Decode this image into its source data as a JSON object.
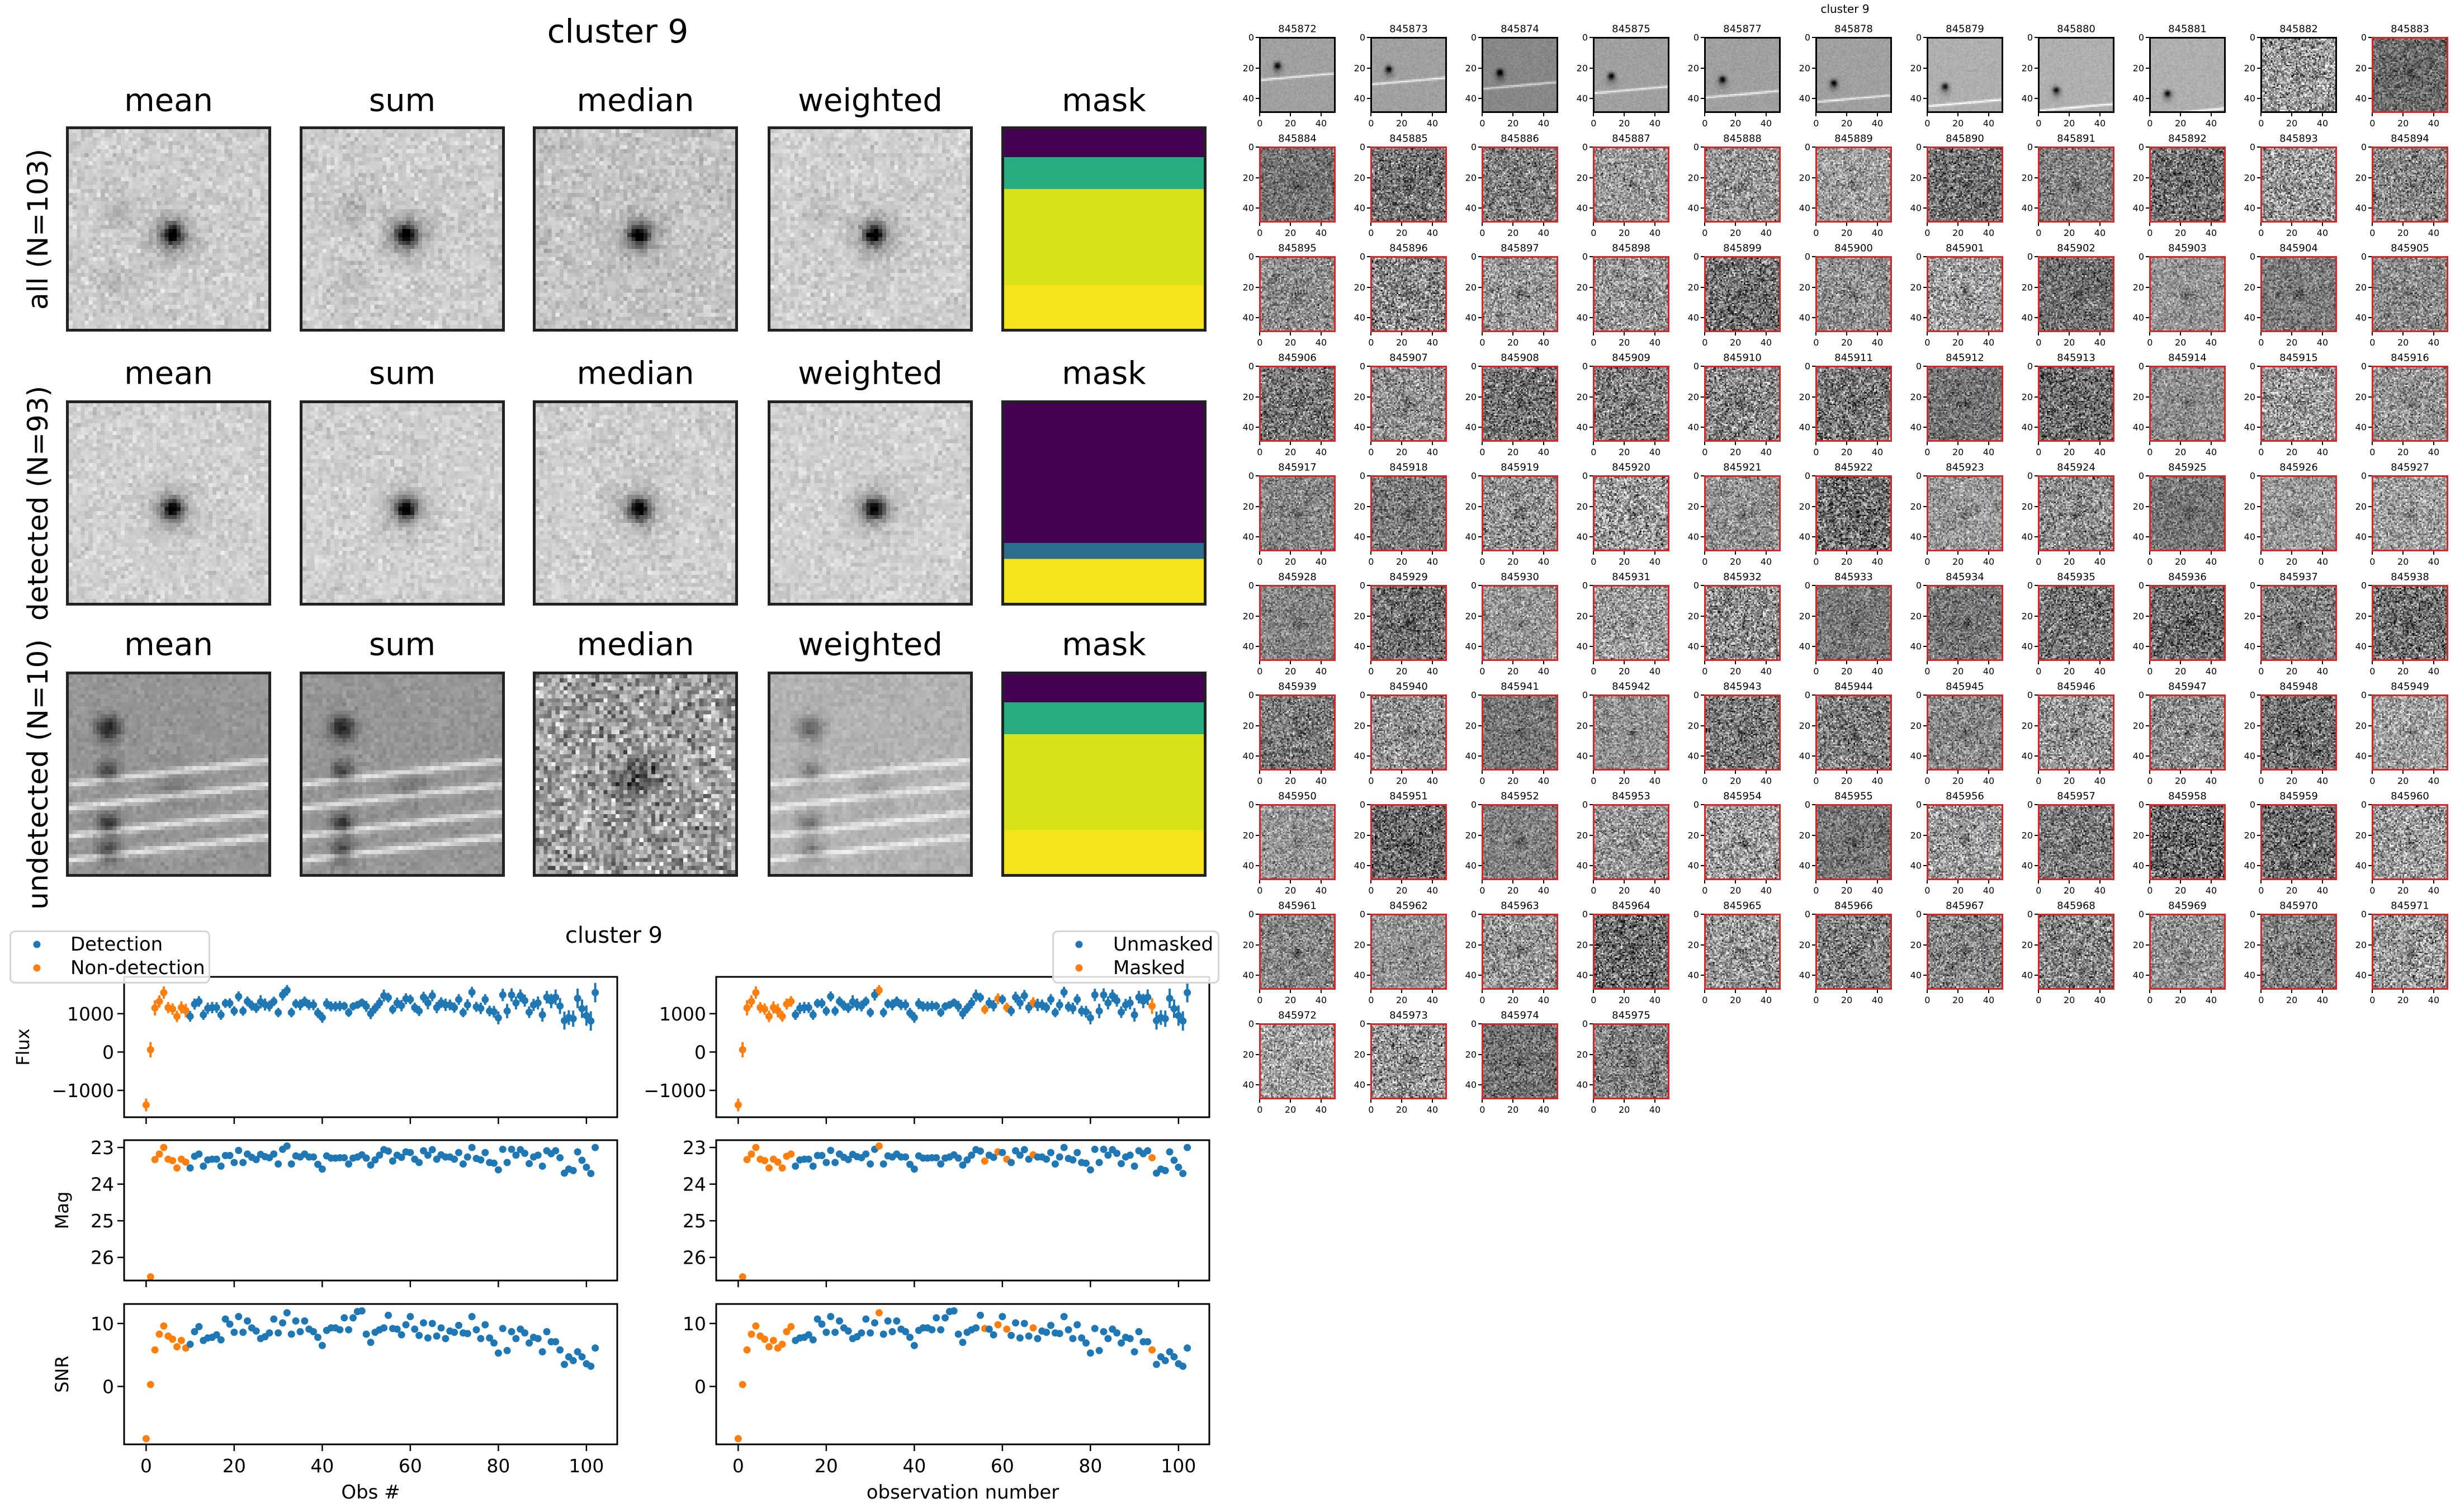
{
  "stamps": {
    "title": "cluster 9",
    "columns": [
      "mean",
      "sum",
      "median",
      "weighted",
      "mask"
    ],
    "rows": [
      "all (N=103)",
      "detected (N=93)",
      "undetected (N=10)"
    ],
    "mask_colors": {
      "purple": "#440154",
      "blue": "#2c6e8e",
      "teal": "#27ad81",
      "yellow_green": "#d8e219",
      "yellow": "#f4e41c"
    }
  },
  "chart_data": {
    "type": "scatter",
    "title": "cluster 9",
    "obs": [
      0,
      1,
      2,
      3,
      4,
      5,
      6,
      7,
      8,
      9,
      10,
      11,
      12,
      13,
      14,
      15,
      16,
      17,
      18,
      19,
      20,
      21,
      22,
      23,
      24,
      25,
      26,
      27,
      28,
      29,
      30,
      31,
      32,
      33,
      34,
      35,
      36,
      37,
      38,
      39,
      40,
      41,
      42,
      43,
      44,
      45,
      46,
      47,
      48,
      49,
      50,
      51,
      52,
      53,
      54,
      55,
      56,
      57,
      58,
      59,
      60,
      61,
      62,
      63,
      64,
      65,
      66,
      67,
      68,
      69,
      70,
      71,
      72,
      73,
      74,
      75,
      76,
      77,
      78,
      79,
      80,
      81,
      82,
      83,
      84,
      85,
      86,
      87,
      88,
      89,
      90,
      91,
      92,
      93,
      94,
      95,
      96,
      97,
      98,
      99,
      100,
      101,
      102
    ],
    "flux": [
      -1380,
      60,
      1150,
      1320,
      1550,
      1160,
      1120,
      930,
      1160,
      1080,
      930,
      1250,
      1320,
      970,
      1140,
      1160,
      1160,
      970,
      1270,
      1270,
      1070,
      1450,
      1070,
      1320,
      1210,
      1150,
      1310,
      1240,
      1200,
      1320,
      1030,
      1490,
      1610,
      1030,
      1260,
      1230,
      1320,
      1230,
      1230,
      1020,
      900,
      1260,
      1190,
      1190,
      1200,
      1200,
      1030,
      1190,
      1230,
      1290,
      1190,
      1000,
      1140,
      1280,
      1470,
      1420,
      1110,
      1280,
      1210,
      1390,
      1370,
      1160,
      1070,
      1430,
      1280,
      1470,
      1160,
      1290,
      1230,
      1230,
      1160,
      1370,
      1030,
      1230,
      1560,
      1180,
      1140,
      1370,
      1070,
      1050,
      890,
      1490,
      1070,
      1490,
      1280,
      1470,
      1340,
      1040,
      1230,
      1280,
      970,
      1430,
      1330,
      1430,
      1200,
      820,
      900,
      870,
      1400,
      1130,
      950,
      810,
      1550
    ],
    "mag": [
      null,
      26.53,
      23.33,
      23.18,
      23.0,
      23.32,
      23.36,
      23.56,
      23.32,
      23.4,
      23.56,
      23.24,
      23.18,
      23.51,
      23.34,
      23.32,
      23.32,
      23.51,
      23.22,
      23.22,
      23.41,
      23.08,
      23.41,
      23.18,
      23.27,
      23.33,
      23.19,
      23.25,
      23.28,
      23.18,
      23.45,
      23.05,
      22.96,
      23.45,
      23.23,
      23.26,
      23.18,
      23.26,
      23.26,
      23.46,
      23.59,
      23.23,
      23.29,
      23.29,
      23.28,
      23.28,
      23.45,
      23.29,
      23.26,
      23.2,
      23.29,
      23.48,
      23.34,
      23.21,
      23.06,
      23.1,
      23.37,
      23.21,
      23.27,
      23.12,
      23.14,
      23.32,
      23.41,
      23.09,
      23.21,
      23.06,
      23.32,
      23.2,
      23.26,
      23.26,
      23.32,
      23.14,
      23.45,
      23.26,
      23.0,
      23.3,
      23.34,
      23.14,
      23.41,
      23.43,
      23.61,
      23.05,
      23.41,
      23.05,
      23.21,
      23.06,
      23.16,
      23.44,
      23.26,
      23.21,
      23.51,
      23.09,
      23.17,
      23.09,
      23.28,
      23.7,
      23.59,
      23.63,
      23.12,
      23.35,
      23.54,
      23.71,
      23.0
    ],
    "snr": [
      -8.3,
      0.3,
      5.8,
      8.3,
      9.6,
      8.0,
      7.5,
      6.3,
      7.3,
      6.1,
      6.7,
      8.7,
      9.5,
      7.3,
      7.7,
      7.8,
      8.2,
      7.4,
      10.7,
      9.9,
      8.6,
      11.1,
      8.6,
      10.4,
      9.3,
      8.8,
      7.6,
      7.9,
      8.5,
      10.7,
      8.5,
      10.1,
      11.7,
      8.3,
      10.4,
      8.7,
      10.4,
      9.1,
      8.7,
      7.8,
      6.5,
      8.9,
      9.3,
      9.3,
      9.0,
      10.9,
      9.0,
      10.9,
      11.9,
      12.0,
      8.3,
      7.0,
      8.6,
      9.0,
      9.3,
      11.3,
      9.2,
      9.1,
      8.2,
      9.8,
      11.1,
      9.1,
      8.1,
      10.1,
      7.7,
      10.0,
      8.0,
      9.3,
      7.6,
      8.8,
      8.6,
      9.7,
      8.5,
      8.4,
      11.1,
      9.0,
      7.6,
      9.8,
      7.7,
      6.9,
      5.3,
      9.2,
      5.7,
      8.7,
      7.6,
      9.1,
      8.5,
      6.9,
      7.8,
      7.6,
      5.5,
      8.7,
      7.1,
      7.1,
      5.8,
      3.5,
      4.7,
      4.1,
      5.5,
      4.7,
      3.6,
      3.2,
      6.1
    ],
    "xlim": [
      -5,
      107
    ],
    "xticks": [
      0,
      20,
      40,
      60,
      80,
      100
    ],
    "rows": [
      {
        "ylabel": "Flux",
        "ylim": [
          -1700,
          1960
        ],
        "yticks": [
          -1000,
          0,
          1000
        ],
        "yticklabels": [
          "−1000",
          "0",
          "1000"
        ],
        "errorbars": true
      },
      {
        "ylabel": "Mag",
        "ylim": [
          26.63,
          22.8
        ],
        "inverted": true,
        "yticks": [
          23,
          24,
          25,
          26
        ],
        "yticklabels": [
          "23",
          "24",
          "25",
          "26"
        ],
        "errorbars": false
      },
      {
        "ylabel": "SNR",
        "ylim": [
          -9.2,
          13.1
        ],
        "yticks": [
          0,
          10
        ],
        "yticklabels": [
          "0",
          "10"
        ],
        "errorbars": false
      }
    ],
    "panels": [
      {
        "xlabel": "Obs #",
        "legend_position": "upper-left",
        "legend": [
          {
            "name": "Detection",
            "color": "#1f77b4"
          },
          {
            "name": "Non-detection",
            "color": "#ff7f0e"
          }
        ],
        "highlight_indices": [
          0,
          1,
          2,
          3,
          4,
          5,
          6,
          7,
          8,
          9
        ]
      },
      {
        "xlabel": "observation number",
        "legend_position": "upper-right",
        "legend": [
          {
            "name": "Unmasked",
            "color": "#1f77b4"
          },
          {
            "name": "Masked",
            "color": "#ff7f0e"
          }
        ],
        "highlight_indices": [
          0,
          1,
          2,
          3,
          4,
          5,
          6,
          7,
          8,
          9,
          10,
          11,
          12,
          32,
          56,
          59,
          61,
          67,
          94
        ]
      }
    ],
    "colors": {
      "base": "#1f77b4",
      "highlight": "#ff7f0e"
    }
  },
  "thumbnails": {
    "title": "cluster 9",
    "tick_labels": [
      "0",
      "20",
      "40"
    ],
    "border_colors": {
      "undetected": "#000000",
      "detected": "#d62728"
    },
    "undetected_ids": [
      "845872",
      "845873",
      "845874",
      "845875",
      "845877",
      "845878",
      "845879",
      "845880",
      "845881",
      "845882"
    ],
    "ids": [
      "845872",
      "845873",
      "845874",
      "845875",
      "845877",
      "845878",
      "845879",
      "845880",
      "845881",
      "845882",
      "845883",
      "845884",
      "845885",
      "845886",
      "845887",
      "845888",
      "845889",
      "845890",
      "845891",
      "845892",
      "845893",
      "845894",
      "845895",
      "845896",
      "845897",
      "845898",
      "845899",
      "845900",
      "845901",
      "845902",
      "845903",
      "845904",
      "845905",
      "845906",
      "845907",
      "845908",
      "845909",
      "845910",
      "845911",
      "845912",
      "845913",
      "845914",
      "845915",
      "845916",
      "845917",
      "845918",
      "845919",
      "845920",
      "845921",
      "845922",
      "845923",
      "845924",
      "845925",
      "845926",
      "845927",
      "845928",
      "845929",
      "845930",
      "845931",
      "845932",
      "845933",
      "845934",
      "845935",
      "845936",
      "845937",
      "845938",
      "845939",
      "845940",
      "845941",
      "845942",
      "845943",
      "845944",
      "845945",
      "845946",
      "845947",
      "845948",
      "845949",
      "845950",
      "845951",
      "845952",
      "845953",
      "845954",
      "845955",
      "845956",
      "845957",
      "845958",
      "845959",
      "845960",
      "845961",
      "845962",
      "845963",
      "845964",
      "845965",
      "845966",
      "845967",
      "845968",
      "845969",
      "845970",
      "845971",
      "845972",
      "845973",
      "845974",
      "845975"
    ]
  }
}
